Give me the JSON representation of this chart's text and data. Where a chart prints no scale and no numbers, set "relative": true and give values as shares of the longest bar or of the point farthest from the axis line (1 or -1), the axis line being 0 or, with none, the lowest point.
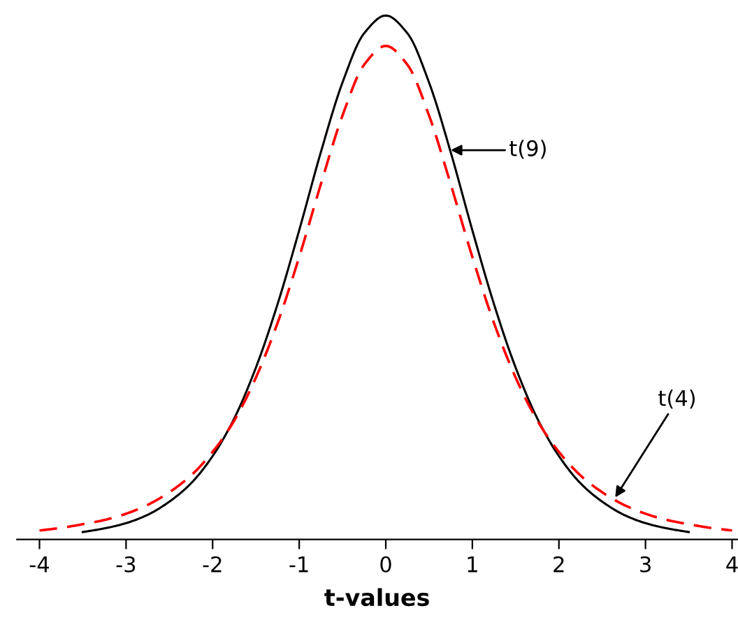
{
  "chart_data": {
    "type": "line",
    "xlabel": "t-values",
    "relative": true,
    "xlim": [
      -4.26,
      4.06
    ],
    "xticks": [
      -4,
      -3,
      -2,
      -1,
      0,
      1,
      2,
      3,
      4
    ],
    "tick_labels": "x",
    "grid": false,
    "legend": false,
    "marker": "none",
    "series": [
      {
        "color": "#000000",
        "line_style": "solid",
        "x": [
          -3.5,
          -3.25,
          -3,
          -2.75,
          -2.5,
          -2.25,
          -2,
          -1.75,
          -1.5,
          -1.25,
          -1,
          -0.75,
          -0.5,
          -0.25,
          0,
          0.25,
          0.5,
          0.75,
          1,
          1.25,
          1.5,
          1.75,
          2,
          2.25,
          2.5,
          2.75,
          3,
          3.25,
          3.5
        ],
        "values": [
          0.014,
          0.021,
          0.031,
          0.047,
          0.072,
          0.107,
          0.159,
          0.231,
          0.328,
          0.449,
          0.59,
          0.739,
          0.872,
          0.966,
          1,
          0.966,
          0.872,
          0.739,
          0.59,
          0.449,
          0.328,
          0.231,
          0.159,
          0.107,
          0.072,
          0.047,
          0.031,
          0.021,
          0.014
        ]
      },
      {
        "color": "#ff0000",
        "line_style": "dashed",
        "x": [
          -4,
          -3.75,
          -3.5,
          -3.25,
          -3,
          -2.75,
          -2.5,
          -2.25,
          -2,
          -1.75,
          -1.5,
          -1.25,
          -1,
          -0.75,
          -0.5,
          -0.25,
          0,
          0.25,
          0.5,
          0.75,
          1,
          1.25,
          1.5,
          1.75,
          2,
          2.25,
          2.5,
          2.75,
          3,
          3.25,
          3.5,
          3.75,
          4
        ],
        "values": [
          0.017,
          0.022,
          0.029,
          0.037,
          0.049,
          0.066,
          0.09,
          0.122,
          0.167,
          0.227,
          0.309,
          0.413,
          0.539,
          0.678,
          0.809,
          0.906,
          0.942,
          0.906,
          0.809,
          0.678,
          0.539,
          0.413,
          0.309,
          0.227,
          0.167,
          0.122,
          0.09,
          0.066,
          0.049,
          0.037,
          0.029,
          0.022,
          0.017
        ]
      }
    ],
    "annotations": [
      {
        "text": "t(9)",
        "x": 0.75,
        "y": 0.743
      },
      {
        "text": "t(4)",
        "x": 2.65,
        "y": 0.08
      }
    ]
  }
}
